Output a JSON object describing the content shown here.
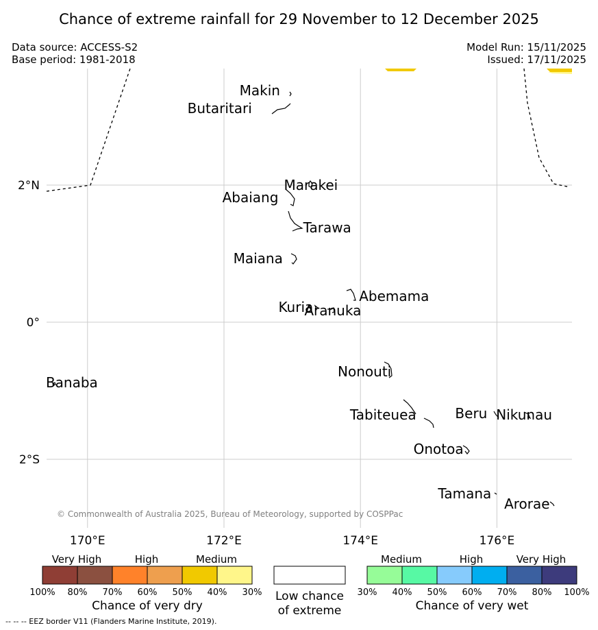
{
  "title": "Chance of extreme rainfall for 29 November to 12 December 2025",
  "data_source": "Data source: ACCESS-S2",
  "base_period": "Base period: 1981-2018",
  "model_run": "Model Run: 15/11/2025",
  "issued": "Issued: 17/11/2025",
  "copyright": "© Commonwealth of Australia 2025, Bureau of Meteorology, supported by COSPPac",
  "map": {
    "extent": {
      "lon_min": 169.4,
      "lon_max": 177.1,
      "lat_min": -3.0,
      "lat_max": 3.7
    },
    "lon_ticks": [
      {
        "lon": 170,
        "label": "170°E"
      },
      {
        "lon": 172,
        "label": "172°E"
      },
      {
        "lon": 174,
        "label": "174°E"
      },
      {
        "lon": 176,
        "label": "176°E"
      }
    ],
    "lat_ticks": [
      {
        "lat": 2,
        "label": "2°N"
      },
      {
        "lat": 0,
        "label": "0°"
      },
      {
        "lat": -2,
        "label": "2°S"
      }
    ],
    "islands": [
      {
        "name": "Makin",
        "lon": 172.98,
        "lat": 3.38
      },
      {
        "name": "Butaritari",
        "lon": 172.85,
        "lat": 3.12
      },
      {
        "name": "Marakei",
        "lon": 173.28,
        "lat": 2.0
      },
      {
        "name": "Abaiang",
        "lon": 173.03,
        "lat": 1.82
      },
      {
        "name": "Tarawa",
        "lon": 173.08,
        "lat": 1.38
      },
      {
        "name": "Maiana",
        "lon": 173.03,
        "lat": 0.93
      },
      {
        "name": "Abemama",
        "lon": 173.9,
        "lat": 0.38
      },
      {
        "name": "Kuria",
        "lon": 173.38,
        "lat": 0.22
      },
      {
        "name": "Aranuka",
        "lon": 173.62,
        "lat": 0.17
      },
      {
        "name": "Nonouti",
        "lon": 174.42,
        "lat": -0.72
      },
      {
        "name": "Banaba",
        "lon": 169.53,
        "lat": -0.88
      },
      {
        "name": "Tabiteuea",
        "lon": 174.85,
        "lat": -1.35
      },
      {
        "name": "Beru",
        "lon": 175.98,
        "lat": -1.33
      },
      {
        "name": "Nikunau",
        "lon": 176.45,
        "lat": -1.35
      },
      {
        "name": "Onotoa",
        "lon": 175.55,
        "lat": -1.85
      },
      {
        "name": "Tamana",
        "lon": 175.98,
        "lat": -2.5
      },
      {
        "name": "Arorae",
        "lon": 176.82,
        "lat": -2.65
      }
    ]
  },
  "legend_dry": {
    "headers": [
      "Very High",
      "High",
      "Medium"
    ],
    "ticks": [
      "100%",
      "80%",
      "70%",
      "60%",
      "50%",
      "40%",
      "30%"
    ],
    "colors": [
      "#8f3e35",
      "#8b5040",
      "#ff822a",
      "#ee9f4e",
      "#f1c900",
      "#fff68a"
    ],
    "caption": "Chance of very dry"
  },
  "legend_low": {
    "caption_line1": "Low chance",
    "caption_line2": "of extreme"
  },
  "legend_wet": {
    "headers": [
      "Medium",
      "High",
      "Very High"
    ],
    "ticks": [
      "30%",
      "40%",
      "50%",
      "60%",
      "70%",
      "80%",
      "100%"
    ],
    "colors": [
      "#96fc98",
      "#57f9a4",
      "#86cbfc",
      "#00aef0",
      "#3b60a0",
      "#3d3b7c"
    ],
    "caption": "Chance of very wet"
  },
  "footnote": "--  --  -- EEZ border V11 (Flanders Marine Institute, 2019)."
}
